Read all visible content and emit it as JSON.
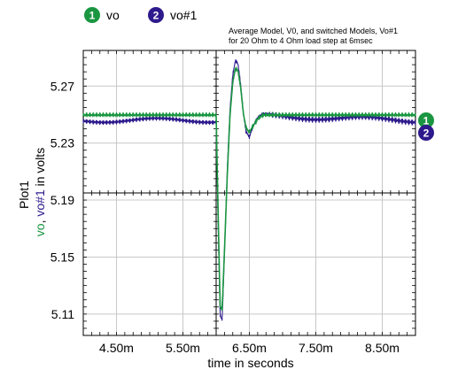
{
  "chart_data": {
    "type": "line",
    "plot_name": "Plot1",
    "title_lines": [
      "Average Model, V0, and switched Models, Vo#1",
      "for 20 Ohm to 4 Ohm load step at 6msec"
    ],
    "xlabel": "time in seconds",
    "ylabel": {
      "series1": "vo",
      "separator": ", ",
      "series2": "vo#1",
      "suffix": " in volts"
    },
    "xlim": [
      0.004,
      0.009
    ],
    "ylim": [
      5.095,
      5.295
    ],
    "x_ticks": [
      0.0045,
      0.0055,
      0.0065,
      0.0075,
      0.0085
    ],
    "x_tick_labels": [
      "4.50m",
      "5.50m",
      "6.50m",
      "7.50m",
      "8.50m"
    ],
    "y_ticks": [
      5.11,
      5.15,
      5.19,
      5.23,
      5.27
    ],
    "y_tick_labels": [
      "5.11",
      "5.15",
      "5.19",
      "5.23",
      "5.27"
    ],
    "grid": true,
    "series": [
      {
        "name": "vo",
        "marker": "1",
        "color": "#1a9641",
        "points": [
          [
            0.004,
            5.249
          ],
          [
            0.0059,
            5.249
          ],
          [
            0.006,
            5.249
          ],
          [
            0.00603,
            5.18
          ],
          [
            0.00606,
            5.115
          ],
          [
            0.00609,
            5.112
          ],
          [
            0.00613,
            5.16
          ],
          [
            0.00617,
            5.21
          ],
          [
            0.00621,
            5.25
          ],
          [
            0.00625,
            5.272
          ],
          [
            0.00629,
            5.282
          ],
          [
            0.00633,
            5.28
          ],
          [
            0.00637,
            5.268
          ],
          [
            0.00641,
            5.25
          ],
          [
            0.00645,
            5.24
          ],
          [
            0.0065,
            5.237
          ],
          [
            0.00655,
            5.241
          ],
          [
            0.00662,
            5.246
          ],
          [
            0.0067,
            5.249
          ],
          [
            0.009,
            5.249
          ]
        ]
      },
      {
        "name": "vo#1",
        "marker": "2",
        "color": "#2e1a8c",
        "points": [
          [
            0.004,
            5.246
          ],
          [
            0.0059,
            5.246
          ],
          [
            0.006,
            5.246
          ],
          [
            0.00603,
            5.175
          ],
          [
            0.00606,
            5.11
          ],
          [
            0.00609,
            5.107
          ],
          [
            0.00613,
            5.16
          ],
          [
            0.00617,
            5.215
          ],
          [
            0.00621,
            5.255
          ],
          [
            0.00625,
            5.278
          ],
          [
            0.00629,
            5.288
          ],
          [
            0.00633,
            5.285
          ],
          [
            0.00637,
            5.27
          ],
          [
            0.00641,
            5.25
          ],
          [
            0.00645,
            5.237
          ],
          [
            0.0065,
            5.233
          ],
          [
            0.00655,
            5.24
          ],
          [
            0.00662,
            5.246
          ],
          [
            0.0067,
            5.249
          ],
          [
            0.009,
            5.246
          ]
        ]
      }
    ]
  }
}
